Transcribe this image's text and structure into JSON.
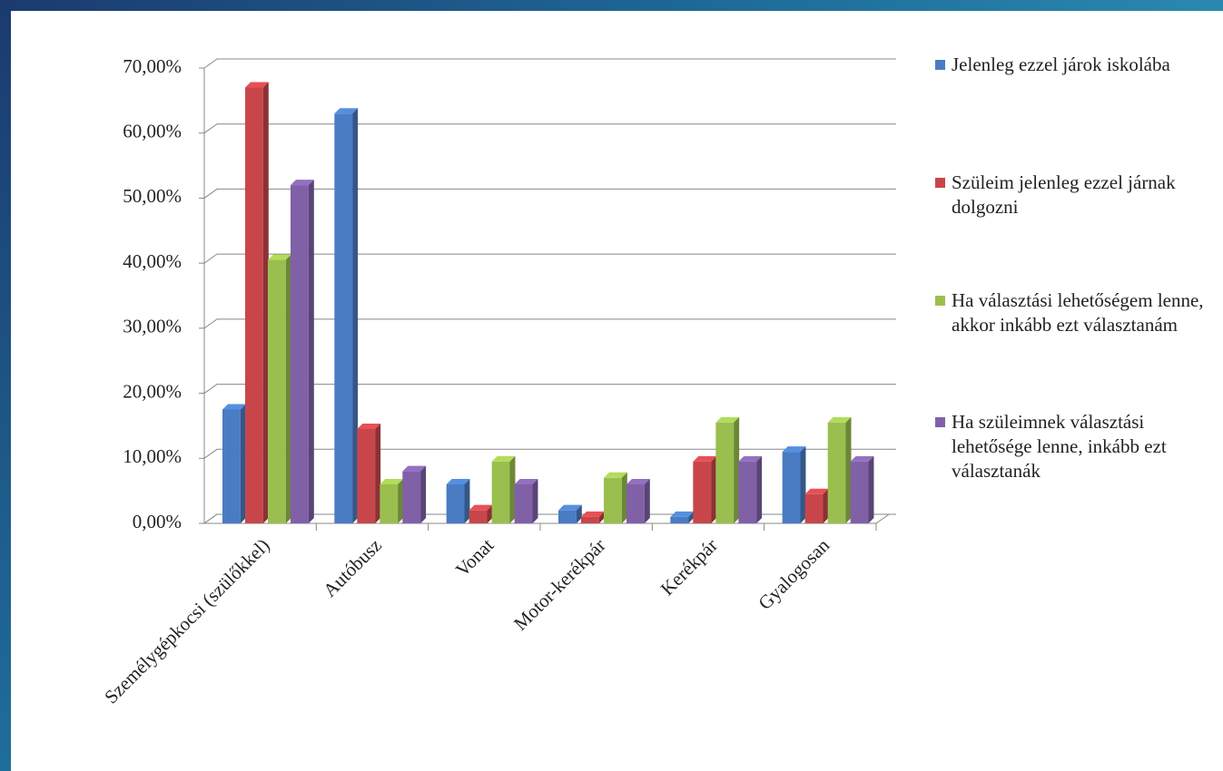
{
  "chart_data": {
    "type": "bar3d",
    "categories": [
      "Személygépkocsi (szülőkkel)",
      "Autóbusz",
      "Vonat",
      "Motor-kerékpár",
      "Kerékpár",
      "Gyalogosan"
    ],
    "series": [
      {
        "name": "Jelenleg ezzel járok iskolába",
        "color": "#4a7cc4",
        "values": [
          17.5,
          63,
          6,
          2,
          1,
          11
        ]
      },
      {
        "name": "Szüleim jelenleg ezzel járnak dolgozni",
        "color": "#c8464a",
        "values": [
          67,
          14.5,
          2,
          1,
          9.5,
          4.5
        ]
      },
      {
        "name": "Ha választási lehetőségem lenne, akkor inkább ezt választanám",
        "color": "#9bbf4e",
        "values": [
          40.5,
          6,
          9.5,
          7,
          15.5,
          15.5
        ]
      },
      {
        "name": "Ha szüleimnek választási lehetősége lenne, inkább ezt választanák",
        "color": "#8061a8",
        "values": [
          52,
          8,
          6,
          6,
          9.5,
          9.5
        ]
      }
    ],
    "ylim": [
      0,
      70
    ],
    "yticks": [
      {
        "value": 0,
        "label": "0,00%"
      },
      {
        "value": 10,
        "label": "10,00%"
      },
      {
        "value": 20,
        "label": "20,00%"
      },
      {
        "value": 30,
        "label": "30,00%"
      },
      {
        "value": 40,
        "label": "40,00%"
      },
      {
        "value": 50,
        "label": "50,00%"
      },
      {
        "value": 60,
        "label": "60,00%"
      },
      {
        "value": 70,
        "label": "70,00%"
      }
    ],
    "grid": true,
    "legend": "right"
  }
}
